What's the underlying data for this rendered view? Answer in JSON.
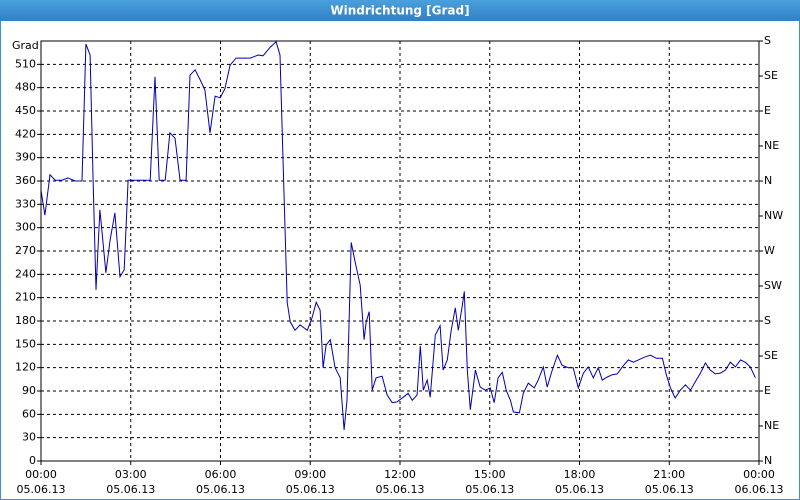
{
  "chart_data": {
    "type": "line",
    "title": "Windrichtung [Grad]",
    "y_label": "Grad",
    "x": [
      0,
      0.13,
      0.3,
      0.47,
      0.7,
      0.9,
      1.14,
      1.37,
      1.5,
      1.64,
      1.74,
      1.84,
      1.97,
      2.17,
      2.31,
      2.47,
      2.64,
      2.78,
      2.91,
      3.0,
      3.65,
      3.81,
      3.95,
      4.15,
      4.31,
      4.48,
      4.65,
      4.85,
      4.98,
      5.15,
      5.32,
      5.48,
      5.65,
      5.82,
      5.99,
      6.15,
      6.32,
      6.52,
      6.76,
      6.99,
      7.26,
      7.42,
      7.66,
      7.86,
      7.99,
      8.13,
      8.23,
      8.33,
      8.49,
      8.66,
      8.9,
      9.06,
      9.2,
      9.33,
      9.43,
      9.53,
      9.67,
      9.83,
      10.0,
      10.13,
      10.23,
      10.37,
      10.5,
      10.67,
      10.8,
      10.87,
      10.97,
      11.07,
      11.2,
      11.4,
      11.57,
      11.74,
      11.9,
      12.11,
      12.27,
      12.41,
      12.57,
      12.68,
      12.78,
      12.91,
      13.01,
      13.18,
      13.34,
      13.44,
      13.58,
      13.71,
      13.85,
      13.95,
      14.08,
      14.15,
      14.25,
      14.35,
      14.52,
      14.68,
      14.85,
      15.02,
      15.15,
      15.28,
      15.42,
      15.55,
      15.69,
      15.79,
      15.99,
      16.12,
      16.29,
      16.49,
      16.62,
      16.79,
      16.92,
      17.09,
      17.26,
      17.42,
      17.63,
      17.79,
      17.96,
      18.13,
      18.29,
      18.46,
      18.63,
      18.76,
      18.93,
      19.1,
      19.26,
      19.43,
      19.63,
      19.8,
      19.97,
      20.2,
      20.37,
      20.57,
      20.77,
      20.9,
      21.04,
      21.2,
      21.37,
      21.54,
      21.71,
      21.87,
      22.04,
      22.21,
      22.37,
      22.54,
      22.71,
      22.88,
      23.04,
      23.21,
      23.38,
      23.54,
      23.71,
      23.88
    ],
    "series": [
      {
        "color": "#0000b4",
        "values": [
          348,
          316,
          368,
          361,
          361,
          364,
          360,
          360,
          536,
          522,
          361,
          220,
          323,
          242,
          284,
          319,
          237,
          246,
          361,
          361,
          361,
          494,
          361,
          361,
          422,
          415,
          361,
          361,
          496,
          503,
          490,
          477,
          422,
          469,
          467,
          479,
          509,
          518,
          518,
          518,
          522,
          521,
          532,
          539,
          522,
          335,
          204,
          179,
          168,
          175,
          168,
          184,
          204,
          194,
          120,
          149,
          156,
          120,
          107,
          40,
          78,
          281,
          256,
          226,
          156,
          179,
          192,
          91,
          107,
          109,
          85,
          75,
          76,
          82,
          87,
          78,
          85,
          148,
          91,
          104,
          82,
          162,
          174,
          117,
          130,
          168,
          197,
          168,
          199,
          218,
          117,
          66,
          117,
          95,
          91,
          94,
          75,
          107,
          114,
          91,
          78,
          63,
          62,
          87,
          100,
          94,
          104,
          121,
          95,
          117,
          136,
          123,
          120,
          120,
          94,
          113,
          121,
          107,
          120,
          104,
          108,
          111,
          112,
          121,
          130,
          127,
          130,
          134,
          136,
          132,
          132,
          111,
          94,
          81,
          91,
          98,
          91,
          102,
          113,
          126,
          117,
          112,
          113,
          117,
          127,
          121,
          130,
          127,
          121,
          107
        ]
      }
    ],
    "xlim": [
      0,
      24
    ],
    "xticks": [
      {
        "value": 0,
        "label": "00:00"
      },
      {
        "value": 3,
        "label": "03:00"
      },
      {
        "value": 6,
        "label": "06:00"
      },
      {
        "value": 9,
        "label": "09:00"
      },
      {
        "value": 12,
        "label": "12:00"
      },
      {
        "value": 15,
        "label": "15:00"
      },
      {
        "value": 18,
        "label": "18:00"
      },
      {
        "value": 21,
        "label": "21:00"
      },
      {
        "value": 24,
        "label": "00:00"
      }
    ],
    "x_tick_dates": [
      "05.06.13",
      "05.06.13",
      "05.06.13",
      "05.06.13",
      "05.06.13",
      "05.06.13",
      "05.06.13",
      "05.06.13",
      "06.06.13"
    ],
    "ylim": [
      0,
      540
    ],
    "yticks": [
      0,
      30,
      60,
      90,
      120,
      150,
      180,
      210,
      240,
      270,
      300,
      330,
      360,
      390,
      420,
      450,
      480,
      510
    ],
    "y2lim": [
      0,
      540
    ],
    "y2ticks": [
      {
        "value": 0,
        "label": "N"
      },
      {
        "value": 45,
        "label": "NE"
      },
      {
        "value": 90,
        "label": "E"
      },
      {
        "value": 135,
        "label": "SE"
      },
      {
        "value": 180,
        "label": "S"
      },
      {
        "value": 225,
        "label": "SW"
      },
      {
        "value": 270,
        "label": "W"
      },
      {
        "value": 315,
        "label": "NW"
      },
      {
        "value": 360,
        "label": "N"
      },
      {
        "value": 405,
        "label": "NE"
      },
      {
        "value": 450,
        "label": "E"
      },
      {
        "value": 495,
        "label": "SE"
      },
      {
        "value": 540,
        "label": "S"
      }
    ],
    "grid": true
  }
}
